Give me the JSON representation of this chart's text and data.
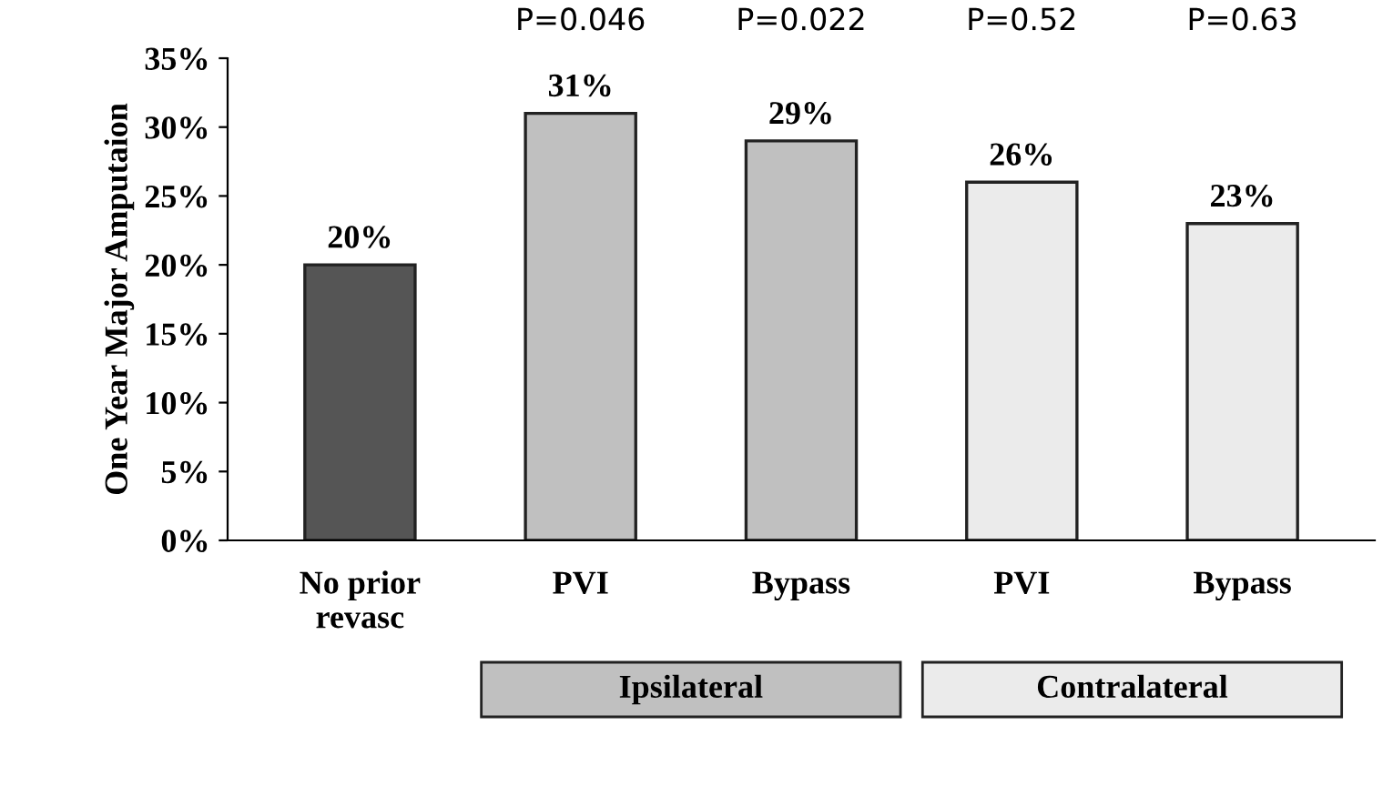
{
  "chart_data": {
    "type": "bar",
    "ylabel": "One Year Major Amputaion",
    "categories": [
      "No prior\nrevasc",
      "PVI",
      "Bypass",
      "PVI",
      "Bypass"
    ],
    "values": [
      20,
      31,
      29,
      26,
      23
    ],
    "colors": [
      "#555555",
      "#c0c0c0",
      "#c0c0c0",
      "#ebebeb",
      "#ebebeb"
    ],
    "value_labels": [
      "20%",
      "31%",
      "29%",
      "26%",
      "23%"
    ],
    "ylim": [
      0,
      35
    ],
    "yticks": [
      {
        "value": 0,
        "label": "0%"
      },
      {
        "value": 5,
        "label": "5%"
      },
      {
        "value": 10,
        "label": "10%"
      },
      {
        "value": 15,
        "label": "15%"
      },
      {
        "value": 20,
        "label": "20%"
      },
      {
        "value": 25,
        "label": "25%"
      },
      {
        "value": 30,
        "label": "30%"
      },
      {
        "value": 35,
        "label": "35%"
      }
    ],
    "grid": false,
    "annotations": [
      "P=0.046",
      "P=0.022",
      "P=0.52",
      "P=0.63",
      "Ipsilateral",
      "Contralateral"
    ]
  }
}
